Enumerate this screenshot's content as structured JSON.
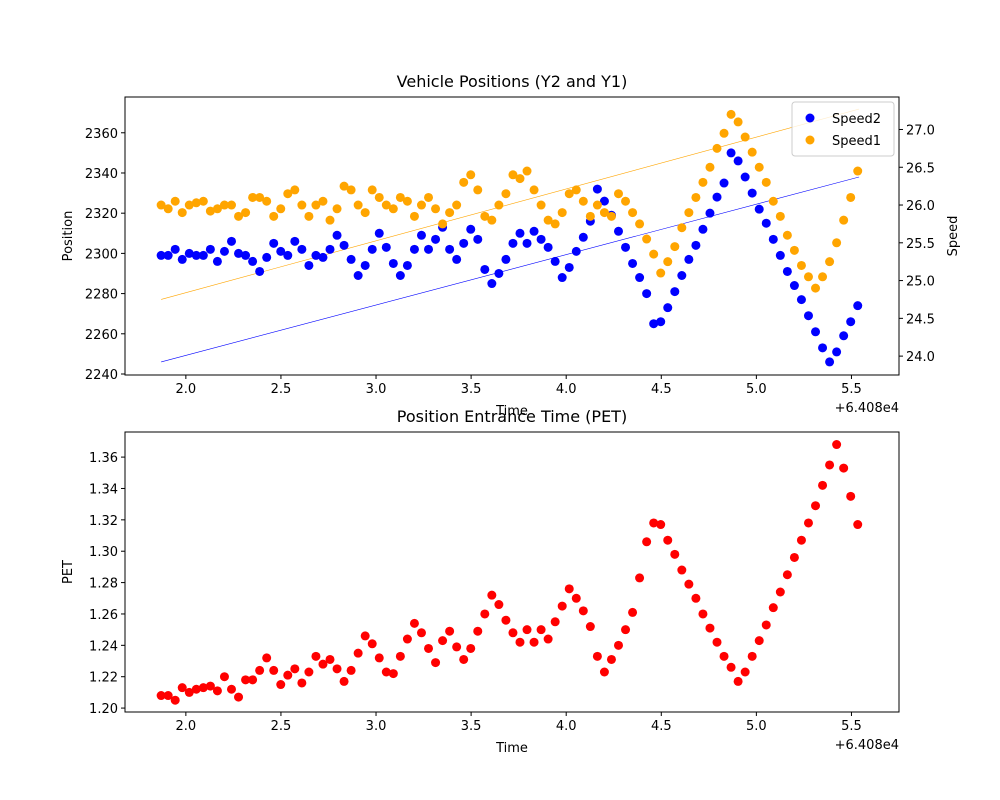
{
  "chart_data": [
    {
      "type": "scatter",
      "title": "Vehicle Positions (Y2 and Y1)",
      "xlabel": "Time",
      "ylabel": "Position",
      "y2label": "Speed",
      "x_offset": "+6.408e4",
      "x": [
        1.87,
        1.907,
        1.944,
        1.981,
        2.018,
        2.055,
        2.092,
        2.129,
        2.166,
        2.203,
        2.24,
        2.277,
        2.314,
        2.351,
        2.388,
        2.425,
        2.462,
        2.499,
        2.536,
        2.573,
        2.61,
        2.647,
        2.684,
        2.721,
        2.758,
        2.795,
        2.832,
        2.869,
        2.906,
        2.943,
        2.98,
        3.017,
        3.054,
        3.091,
        3.128,
        3.165,
        3.202,
        3.239,
        3.276,
        3.313,
        3.35,
        3.387,
        3.424,
        3.461,
        3.498,
        3.535,
        3.572,
        3.609,
        3.646,
        3.683,
        3.72,
        3.757,
        3.794,
        3.831,
        3.868,
        3.905,
        3.942,
        3.979,
        4.016,
        4.053,
        4.09,
        4.127,
        4.164,
        4.201,
        4.238,
        4.275,
        4.312,
        4.349,
        4.386,
        4.423,
        4.46,
        4.497,
        4.534,
        4.571,
        4.608,
        4.645,
        4.682,
        4.719,
        4.756,
        4.793,
        4.83,
        4.867,
        4.904,
        4.941,
        4.978,
        5.015,
        5.052,
        5.089,
        5.126,
        5.163,
        5.2,
        5.237,
        5.274,
        5.311,
        5.348,
        5.385,
        5.422,
        5.459,
        5.496,
        5.533
      ],
      "xlim": [
        1.68,
        5.75
      ],
      "xticks": [
        {
          "value": 2.0,
          "label": "2.0"
        },
        {
          "value": 2.5,
          "label": "2.5"
        },
        {
          "value": 3.0,
          "label": "3.0"
        },
        {
          "value": 3.5,
          "label": "3.5"
        },
        {
          "value": 4.0,
          "label": "4.0"
        },
        {
          "value": 4.5,
          "label": "4.5"
        },
        {
          "value": 5.0,
          "label": "5.0"
        },
        {
          "value": 5.5,
          "label": "5.5"
        }
      ],
      "ylim": [
        2239.5,
        2377.8
      ],
      "yticks": [
        2240,
        2260,
        2280,
        2300,
        2320,
        2340,
        2360
      ],
      "y2lim": [
        23.75,
        27.43
      ],
      "y2ticks": [
        {
          "value": 24.0,
          "label": "24.0"
        },
        {
          "value": 24.5,
          "label": "24.5"
        },
        {
          "value": 25.0,
          "label": "25.0"
        },
        {
          "value": 25.5,
          "label": "25.5"
        },
        {
          "value": 26.0,
          "label": "26.0"
        },
        {
          "value": 26.5,
          "label": "26.5"
        },
        {
          "value": 27.0,
          "label": "27.0"
        }
      ],
      "legend": "upper right",
      "series": [
        {
          "name": "Speed2",
          "color": "#0000ff",
          "axis": "y",
          "values": [
            2299,
            2299,
            2302,
            2297,
            2300,
            2299,
            2299,
            2302,
            2296,
            2301,
            2306,
            2300,
            2299,
            2296,
            2291,
            2298,
            2305,
            2301,
            2299,
            2306,
            2302,
            2294,
            2299,
            2298,
            2302,
            2309,
            2304,
            2297,
            2289,
            2294,
            2302,
            2310,
            2303,
            2295,
            2289,
            2294,
            2302,
            2309,
            2302,
            2307,
            2313,
            2302,
            2297,
            2305,
            2312,
            2307,
            2292,
            2285,
            2290,
            2297,
            2305,
            2310,
            2305,
            2311,
            2307,
            2303,
            2296,
            2288,
            2293,
            2301,
            2308,
            2316,
            2332,
            2326,
            2319,
            2311,
            2303,
            2295,
            2288,
            2280,
            2265,
            2266,
            2273,
            2281,
            2289,
            2297,
            2304,
            2312,
            2320,
            2328,
            2335,
            2350,
            2346,
            2338,
            2330,
            2322,
            2315,
            2307,
            2299,
            2291,
            2284,
            2277,
            2269,
            2261,
            2253,
            2246,
            2251,
            2259,
            2266,
            2274
          ]
        },
        {
          "name": "Speed1",
          "color": "#ffa500",
          "axis": "y2",
          "values": [
            26.0,
            25.95,
            26.05,
            25.9,
            26.0,
            26.03,
            26.05,
            25.92,
            25.95,
            26.0,
            26.0,
            25.85,
            25.9,
            26.1,
            26.1,
            26.05,
            25.85,
            25.95,
            26.15,
            26.2,
            26.0,
            25.85,
            26.0,
            26.05,
            25.8,
            25.95,
            26.25,
            26.2,
            26.0,
            25.9,
            26.2,
            26.1,
            26.0,
            25.95,
            26.1,
            26.05,
            25.85,
            26.0,
            26.1,
            25.95,
            25.75,
            25.9,
            26.0,
            26.3,
            26.4,
            26.2,
            25.85,
            25.8,
            26.0,
            26.15,
            26.4,
            26.35,
            26.45,
            26.2,
            26.0,
            25.8,
            25.75,
            25.9,
            26.15,
            26.2,
            26.05,
            25.85,
            26.0,
            25.9,
            25.85,
            26.15,
            26.05,
            25.9,
            25.75,
            25.55,
            25.35,
            25.1,
            25.25,
            25.45,
            25.7,
            25.9,
            26.1,
            26.3,
            26.5,
            26.75,
            26.95,
            27.2,
            27.1,
            26.9,
            26.7,
            26.5,
            26.3,
            26.05,
            25.85,
            25.6,
            25.4,
            25.2,
            25.05,
            24.9,
            25.05,
            25.25,
            25.5,
            25.8,
            26.1,
            26.45
          ]
        }
      ],
      "trend_lines": [
        {
          "color": "#0000ff",
          "axis": "y",
          "x": [
            1.87,
            5.54
          ],
          "values": [
            2246,
            2338
          ]
        },
        {
          "color": "#ffa500",
          "axis": "y2",
          "x": [
            1.87,
            5.54
          ],
          "values": [
            24.75,
            27.27
          ]
        }
      ]
    },
    {
      "type": "scatter",
      "title": "Position Entrance Time (PET)",
      "xlabel": "Time",
      "ylabel": "PET",
      "x_offset": "+6.408e4",
      "x": [
        1.87,
        1.907,
        1.944,
        1.981,
        2.018,
        2.055,
        2.092,
        2.129,
        2.166,
        2.203,
        2.24,
        2.277,
        2.314,
        2.351,
        2.388,
        2.425,
        2.462,
        2.499,
        2.536,
        2.573,
        2.61,
        2.647,
        2.684,
        2.721,
        2.758,
        2.795,
        2.832,
        2.869,
        2.906,
        2.943,
        2.98,
        3.017,
        3.054,
        3.091,
        3.128,
        3.165,
        3.202,
        3.239,
        3.276,
        3.313,
        3.35,
        3.387,
        3.424,
        3.461,
        3.498,
        3.535,
        3.572,
        3.609,
        3.646,
        3.683,
        3.72,
        3.757,
        3.794,
        3.831,
        3.868,
        3.905,
        3.942,
        3.979,
        4.016,
        4.053,
        4.09,
        4.127,
        4.164,
        4.201,
        4.238,
        4.275,
        4.312,
        4.349,
        4.386,
        4.423,
        4.46,
        4.497,
        4.534,
        4.571,
        4.608,
        4.645,
        4.682,
        4.719,
        4.756,
        4.793,
        4.83,
        4.867,
        4.904,
        4.941,
        4.978,
        5.015,
        5.052,
        5.089,
        5.126,
        5.163,
        5.2,
        5.237,
        5.274,
        5.311,
        5.348,
        5.385,
        5.422,
        5.459,
        5.496,
        5.533
      ],
      "xlim": [
        1.68,
        5.75
      ],
      "xticks": [
        {
          "value": 2.0,
          "label": "2.0"
        },
        {
          "value": 2.5,
          "label": "2.5"
        },
        {
          "value": 3.0,
          "label": "3.0"
        },
        {
          "value": 3.5,
          "label": "3.5"
        },
        {
          "value": 4.0,
          "label": "4.0"
        },
        {
          "value": 4.5,
          "label": "4.5"
        },
        {
          "value": 5.0,
          "label": "5.0"
        },
        {
          "value": 5.5,
          "label": "5.5"
        }
      ],
      "ylim": [
        1.1975,
        1.376
      ],
      "yticks": [
        {
          "value": 1.2,
          "label": "1.20"
        },
        {
          "value": 1.22,
          "label": "1.22"
        },
        {
          "value": 1.24,
          "label": "1.24"
        },
        {
          "value": 1.26,
          "label": "1.26"
        },
        {
          "value": 1.28,
          "label": "1.28"
        },
        {
          "value": 1.3,
          "label": "1.30"
        },
        {
          "value": 1.32,
          "label": "1.32"
        },
        {
          "value": 1.34,
          "label": "1.34"
        },
        {
          "value": 1.36,
          "label": "1.36"
        }
      ],
      "series": [
        {
          "color": "#ff0000",
          "axis": "y",
          "values": [
            1.208,
            1.208,
            1.205,
            1.213,
            1.21,
            1.212,
            1.213,
            1.214,
            1.211,
            1.22,
            1.212,
            1.207,
            1.218,
            1.218,
            1.224,
            1.232,
            1.224,
            1.215,
            1.221,
            1.225,
            1.216,
            1.223,
            1.233,
            1.228,
            1.231,
            1.225,
            1.217,
            1.224,
            1.235,
            1.246,
            1.241,
            1.232,
            1.223,
            1.222,
            1.233,
            1.244,
            1.254,
            1.248,
            1.238,
            1.229,
            1.243,
            1.249,
            1.239,
            1.231,
            1.238,
            1.249,
            1.26,
            1.272,
            1.266,
            1.256,
            1.248,
            1.242,
            1.25,
            1.242,
            1.25,
            1.244,
            1.255,
            1.265,
            1.276,
            1.27,
            1.262,
            1.252,
            1.233,
            1.223,
            1.231,
            1.24,
            1.25,
            1.261,
            1.283,
            1.306,
            1.318,
            1.317,
            1.307,
            1.298,
            1.288,
            1.279,
            1.27,
            1.26,
            1.251,
            1.242,
            1.233,
            1.226,
            1.217,
            1.223,
            1.233,
            1.243,
            1.253,
            1.264,
            1.274,
            1.285,
            1.296,
            1.307,
            1.318,
            1.329,
            1.342,
            1.355,
            1.368,
            1.353,
            1.335,
            1.317
          ]
        }
      ]
    }
  ]
}
